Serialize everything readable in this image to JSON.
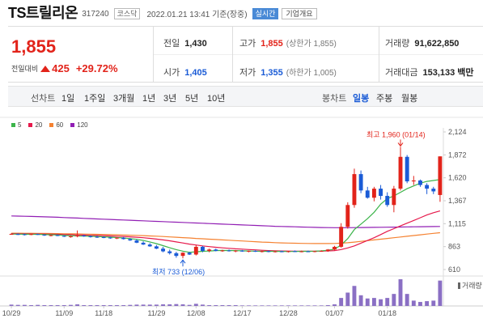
{
  "header": {
    "name": "TS트릴리온",
    "code": "317240",
    "market": "코스닥",
    "datetime": "2022.01.21 13:41 기준(장중)",
    "realtime": "실시간",
    "overview": "기업개요"
  },
  "price": {
    "current": "1,855",
    "change_label": "전일대비",
    "change": "425",
    "change_pct": "+29.72%"
  },
  "stats": {
    "prev_label": "전일",
    "prev": "1,430",
    "high_label": "고가",
    "high": "1,855",
    "high_sub": "(상한가 1,855)",
    "volume_label": "거래량",
    "volume": "91,622,850",
    "open_label": "시가",
    "open": "1,405",
    "low_label": "저가",
    "low": "1,355",
    "low_sub": "(하한가 1,005)",
    "amount_label": "거래대금",
    "amount": "153,133 백만"
  },
  "toolbar": {
    "period_label": "선차트",
    "periods": [
      "1일",
      "1주일",
      "3개월",
      "1년",
      "3년",
      "5년",
      "10년"
    ],
    "candle_label": "봉차트",
    "candles": [
      "일봉",
      "주봉",
      "월봉"
    ],
    "active_candle": "일봉"
  },
  "colors": {
    "up": "#e2231a",
    "down": "#1a5bd6",
    "ma5": "#3cb44b",
    "ma20": "#e6194b",
    "ma60": "#f58231",
    "ma120": "#911eb4"
  },
  "chart_data": {
    "type": "candlestick",
    "legend": [
      "5",
      "20",
      "60",
      "120"
    ],
    "y_ticks": [
      "2,124",
      "1,872",
      "1,620",
      "1,367",
      "1,115",
      "863",
      "610"
    ],
    "ylim": [
      610,
      2124
    ],
    "x_ticks": [
      "10/29",
      "11/09",
      "11/18",
      "11/29",
      "12/08",
      "12/17",
      "12/28",
      "01/07",
      "01/18"
    ],
    "high_annotation": "최고 1,960 (01/14)",
    "low_annotation": "최저 733 (12/06)",
    "volume_label": "거래량",
    "candles": [
      [
        1002,
        1010,
        995,
        1002
      ],
      [
        1000,
        1008,
        990,
        998
      ],
      [
        998,
        1004,
        985,
        995
      ],
      [
        996,
        1003,
        988,
        1000
      ],
      [
        1000,
        1006,
        990,
        992
      ],
      [
        993,
        998,
        980,
        985
      ],
      [
        985,
        992,
        975,
        988
      ],
      [
        988,
        995,
        978,
        980
      ],
      [
        980,
        985,
        968,
        972
      ],
      [
        972,
        980,
        960,
        975
      ],
      [
        975,
        1040,
        965,
        985
      ],
      [
        985,
        992,
        970,
        975
      ],
      [
        975,
        985,
        962,
        970
      ],
      [
        970,
        980,
        958,
        965
      ],
      [
        966,
        975,
        955,
        962
      ],
      [
        962,
        970,
        948,
        955
      ],
      [
        955,
        965,
        945,
        960
      ],
      [
        960,
        968,
        940,
        945
      ],
      [
        945,
        955,
        925,
        930
      ],
      [
        930,
        942,
        900,
        905
      ],
      [
        905,
        920,
        880,
        885
      ],
      [
        885,
        900,
        860,
        865
      ],
      [
        865,
        880,
        835,
        840
      ],
      [
        840,
        860,
        800,
        810
      ],
      [
        810,
        830,
        775,
        790
      ],
      [
        790,
        805,
        740,
        760
      ],
      [
        760,
        800,
        733,
        795
      ],
      [
        795,
        805,
        770,
        775
      ],
      [
        775,
        880,
        765,
        860
      ],
      [
        860,
        870,
        800,
        815
      ],
      [
        815,
        840,
        800,
        830
      ],
      [
        830,
        840,
        810,
        815
      ],
      [
        815,
        828,
        805,
        820
      ],
      [
        820,
        830,
        808,
        812
      ],
      [
        812,
        825,
        800,
        818
      ],
      [
        818,
        825,
        805,
        808
      ],
      [
        808,
        820,
        800,
        815
      ],
      [
        815,
        822,
        803,
        806
      ],
      [
        806,
        818,
        798,
        812
      ],
      [
        812,
        820,
        800,
        805
      ],
      [
        805,
        816,
        798,
        810
      ],
      [
        810,
        818,
        800,
        806
      ],
      [
        806,
        815,
        798,
        812
      ],
      [
        812,
        820,
        802,
        808
      ],
      [
        808,
        818,
        800,
        810
      ],
      [
        810,
        818,
        802,
        806
      ],
      [
        806,
        815,
        800,
        812
      ],
      [
        812,
        822,
        805,
        815
      ],
      [
        815,
        835,
        805,
        830
      ],
      [
        830,
        870,
        820,
        860
      ],
      [
        860,
        1120,
        850,
        1080
      ],
      [
        1080,
        1350,
        1060,
        1320
      ],
      [
        1320,
        1720,
        1290,
        1660
      ],
      [
        1660,
        1700,
        1450,
        1480
      ],
      [
        1480,
        1520,
        1390,
        1400
      ],
      [
        1400,
        1520,
        1360,
        1500
      ],
      [
        1500,
        1540,
        1380,
        1420
      ],
      [
        1420,
        1460,
        1300,
        1320
      ],
      [
        1320,
        1530,
        1240,
        1500
      ],
      [
        1500,
        1960,
        1480,
        1850
      ],
      [
        1850,
        1870,
        1560,
        1580
      ],
      [
        1580,
        1640,
        1540,
        1590
      ],
      [
        1590,
        1600,
        1520,
        1540
      ],
      [
        1540,
        1560,
        1440,
        1500
      ],
      [
        1500,
        1520,
        1440,
        1470
      ],
      [
        1430,
        1855,
        1355,
        1855
      ]
    ],
    "volumes": [
      5,
      4,
      4,
      3,
      4,
      3,
      3,
      3,
      3,
      4,
      6,
      3,
      3,
      3,
      3,
      3,
      3,
      3,
      4,
      5,
      5,
      5,
      5,
      6,
      6,
      7,
      6,
      4,
      8,
      5,
      3,
      3,
      3,
      3,
      3,
      2,
      2,
      2,
      2,
      2,
      2,
      2,
      2,
      2,
      2,
      2,
      2,
      2,
      3,
      6,
      30,
      50,
      75,
      40,
      28,
      30,
      25,
      30,
      45,
      100,
      45,
      20,
      15,
      18,
      20,
      95
    ],
    "ma5": [
      1000,
      999,
      998,
      997,
      997,
      995,
      993,
      990,
      986,
      982,
      980,
      978,
      976,
      973,
      970,
      966,
      962,
      957,
      950,
      942,
      930,
      914,
      895,
      873,
      850,
      829,
      812,
      800,
      805,
      810,
      814,
      818,
      820,
      819,
      818,
      816,
      814,
      812,
      810,
      810,
      810,
      809,
      809,
      809,
      810,
      810,
      811,
      815,
      822,
      834,
      880,
      950,
      1050,
      1110,
      1170,
      1240,
      1330,
      1390,
      1420,
      1460,
      1500,
      1530,
      1560,
      1580,
      1590,
      1600
    ],
    "ma20": [
      1005,
      1004,
      1003,
      1002,
      1001,
      1000,
      999,
      997,
      995,
      993,
      991,
      989,
      987,
      985,
      983,
      980,
      977,
      974,
      970,
      965,
      960,
      953,
      945,
      936,
      926,
      914,
      902,
      890,
      880,
      870,
      862,
      855,
      849,
      843,
      838,
      834,
      830,
      826,
      822,
      818,
      816,
      814,
      813,
      812,
      812,
      812,
      812,
      813,
      815,
      818,
      830,
      848,
      870,
      900,
      930,
      960,
      995,
      1030,
      1060,
      1090,
      1120,
      1150,
      1180,
      1210,
      1235,
      1255
    ],
    "ma60": [
      1010,
      1010,
      1009,
      1009,
      1008,
      1007,
      1006,
      1005,
      1004,
      1003,
      1002,
      1000,
      999,
      997,
      996,
      994,
      992,
      990,
      988,
      986,
      983,
      980,
      977,
      973,
      969,
      965,
      961,
      957,
      952,
      948,
      944,
      940,
      936,
      932,
      928,
      924,
      920,
      916,
      912,
      909,
      906,
      903,
      901,
      899,
      898,
      897,
      896,
      896,
      896,
      897,
      900,
      905,
      912,
      920,
      928,
      936,
      944,
      952,
      960,
      968,
      976,
      984,
      992,
      1000,
      1008,
      1015
    ],
    "ma120": [
      1200,
      1198,
      1196,
      1194,
      1192,
      1190,
      1188,
      1185,
      1182,
      1179,
      1176,
      1173,
      1170,
      1167,
      1164,
      1161,
      1158,
      1155,
      1152,
      1149,
      1146,
      1143,
      1140,
      1137,
      1134,
      1131,
      1128,
      1125,
      1122,
      1119,
      1116,
      1113,
      1110,
      1107,
      1104,
      1101,
      1098,
      1095,
      1092,
      1089,
      1086,
      1084,
      1082,
      1080,
      1078,
      1076,
      1074,
      1072,
      1071,
      1070,
      1070,
      1070,
      1071,
      1072,
      1073,
      1074,
      1075,
      1076,
      1077,
      1078,
      1079,
      1080,
      1081,
      1082,
      1083,
      1084
    ]
  }
}
